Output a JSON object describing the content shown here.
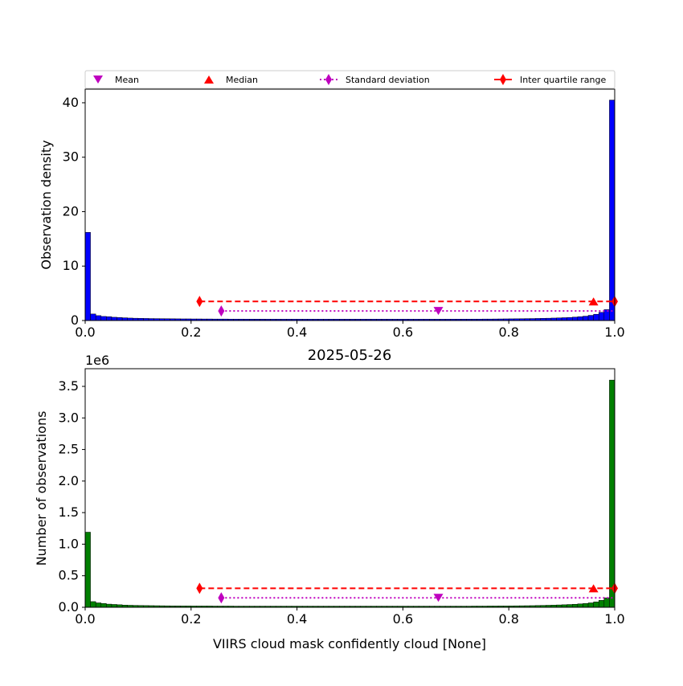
{
  "legend": {
    "placement": "top-spanning",
    "items": [
      {
        "label": "Mean",
        "marker": "triangle-down",
        "color": "#bf00bf"
      },
      {
        "label": "Median",
        "marker": "triangle-up",
        "color": "#ff0000"
      },
      {
        "label": "Standard deviation",
        "marker": "thin-diamond-dotted-line",
        "color": "#bf00bf"
      },
      {
        "label": "Inter quartile range",
        "marker": "thin-diamond-solid-line",
        "color": "#ff0000"
      }
    ]
  },
  "chart_data": [
    {
      "type": "bar",
      "panel": "top",
      "title": "",
      "xlabel": "",
      "ylabel": "Observation density",
      "xlim": [
        0,
        1
      ],
      "ylim": [
        0,
        42.5
      ],
      "xticks": [
        "0.0",
        "0.2",
        "0.4",
        "0.6",
        "0.8",
        "1.0"
      ],
      "yticks": [
        "0",
        "10",
        "20",
        "30",
        "40"
      ],
      "ytick_values": [
        0,
        10,
        20,
        30,
        40
      ],
      "grid": false,
      "bar_color": "#0000ff",
      "bin_width": 0.01,
      "bin_start": 0,
      "values": [
        16.2,
        1.2,
        0.9,
        0.75,
        0.7,
        0.6,
        0.55,
        0.5,
        0.45,
        0.42,
        0.4,
        0.38,
        0.36,
        0.35,
        0.34,
        0.33,
        0.32,
        0.31,
        0.3,
        0.3,
        0.29,
        0.29,
        0.28,
        0.28,
        0.27,
        0.27,
        0.27,
        0.26,
        0.26,
        0.26,
        0.25,
        0.25,
        0.25,
        0.25,
        0.24,
        0.24,
        0.24,
        0.24,
        0.24,
        0.24,
        0.24,
        0.24,
        0.24,
        0.24,
        0.24,
        0.24,
        0.24,
        0.24,
        0.24,
        0.24,
        0.24,
        0.24,
        0.24,
        0.24,
        0.24,
        0.24,
        0.24,
        0.24,
        0.24,
        0.24,
        0.24,
        0.24,
        0.24,
        0.24,
        0.24,
        0.24,
        0.24,
        0.24,
        0.24,
        0.25,
        0.25,
        0.25,
        0.25,
        0.26,
        0.26,
        0.27,
        0.27,
        0.28,
        0.29,
        0.3,
        0.31,
        0.32,
        0.33,
        0.35,
        0.36,
        0.38,
        0.4,
        0.42,
        0.45,
        0.48,
        0.52,
        0.56,
        0.62,
        0.7,
        0.8,
        0.95,
        1.15,
        1.5,
        2.0,
        40.5
      ],
      "stats": {
        "iqr": {
          "x1": 0.216,
          "x2": 1.0,
          "y": 3.5
        },
        "std": {
          "x1": 0.257,
          "x2": 1.0,
          "y": 1.75
        },
        "mean": {
          "x": 0.667,
          "y": 1.75
        },
        "median": {
          "x": 0.96,
          "y": 3.5
        }
      }
    },
    {
      "type": "bar",
      "panel": "bottom",
      "title": "2025-05-26",
      "xlabel": "VIIRS cloud mask confidently cloud [None]",
      "ylabel": "Number of observations",
      "offset_label": "1e6",
      "xlim": [
        0,
        1
      ],
      "ylim": [
        0,
        3.78
      ],
      "xticks": [
        "0.0",
        "0.2",
        "0.4",
        "0.6",
        "0.8",
        "1.0"
      ],
      "yticks": [
        "0.0",
        "0.5",
        "1.0",
        "1.5",
        "2.0",
        "2.5",
        "3.0",
        "3.5"
      ],
      "ytick_values": [
        0,
        0.5,
        1.0,
        1.5,
        2.0,
        2.5,
        3.0,
        3.5
      ],
      "grid": false,
      "bar_color": "#007f00",
      "bin_width": 0.01,
      "bin_start": 0,
      "values": [
        1.19,
        0.09,
        0.07,
        0.06,
        0.05,
        0.045,
        0.04,
        0.035,
        0.032,
        0.03,
        0.028,
        0.027,
        0.026,
        0.025,
        0.024,
        0.023,
        0.022,
        0.022,
        0.021,
        0.021,
        0.02,
        0.02,
        0.02,
        0.02,
        0.019,
        0.019,
        0.019,
        0.019,
        0.018,
        0.018,
        0.018,
        0.018,
        0.018,
        0.018,
        0.018,
        0.018,
        0.018,
        0.018,
        0.018,
        0.018,
        0.018,
        0.018,
        0.018,
        0.018,
        0.018,
        0.018,
        0.018,
        0.018,
        0.018,
        0.018,
        0.018,
        0.018,
        0.018,
        0.018,
        0.018,
        0.018,
        0.018,
        0.018,
        0.018,
        0.018,
        0.018,
        0.018,
        0.018,
        0.018,
        0.018,
        0.018,
        0.018,
        0.018,
        0.018,
        0.018,
        0.018,
        0.018,
        0.018,
        0.019,
        0.019,
        0.019,
        0.02,
        0.02,
        0.021,
        0.021,
        0.022,
        0.023,
        0.024,
        0.025,
        0.026,
        0.028,
        0.03,
        0.032,
        0.034,
        0.037,
        0.04,
        0.044,
        0.048,
        0.054,
        0.06,
        0.07,
        0.085,
        0.11,
        0.15,
        3.6
      ],
      "stats": {
        "iqr": {
          "x1": 0.216,
          "x2": 1.0,
          "y": 0.3
        },
        "std": {
          "x1": 0.257,
          "x2": 1.0,
          "y": 0.15
        },
        "mean": {
          "x": 0.667,
          "y": 0.15
        },
        "median": {
          "x": 0.96,
          "y": 0.3
        }
      }
    }
  ]
}
